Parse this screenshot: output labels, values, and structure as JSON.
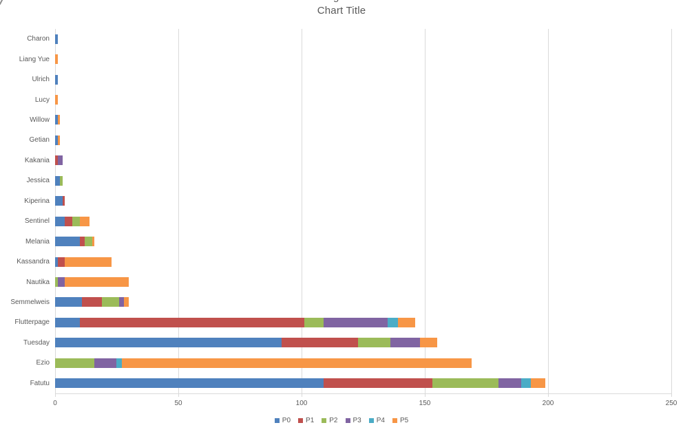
{
  "artifacts": {
    "top_center_partial": "g",
    "left_edge_partial": ")"
  },
  "chart_data": {
    "type": "bar",
    "orientation": "horizontal",
    "stacked": true,
    "title": "Chart Title",
    "categories": [
      "Charon",
      "Liang Yue",
      "Ulrich",
      "Lucy",
      "Willow",
      "Getian",
      "Kakania",
      "Jessica",
      "Kiperina",
      "Sentinel",
      "Melania",
      "Kassandra",
      "Nautika",
      "Semmelweis",
      "Flutterpage",
      "Tuesday",
      "Ezio",
      "Fatutu"
    ],
    "series": [
      {
        "name": "P0",
        "color": "#4F81BD",
        "values": [
          1,
          0,
          1,
          0,
          1,
          1,
          0,
          2,
          3,
          4,
          10,
          1,
          0,
          11,
          10,
          92,
          0,
          109
        ]
      },
      {
        "name": "P1",
        "color": "#C0504D",
        "values": [
          0,
          0,
          0,
          0,
          0,
          0,
          1,
          0,
          1,
          3,
          2,
          3,
          0,
          8,
          91,
          31,
          0,
          44
        ]
      },
      {
        "name": "P2",
        "color": "#9BBB59",
        "values": [
          0,
          0,
          0,
          0,
          0,
          0,
          0,
          1,
          0,
          3,
          3,
          0,
          1,
          7,
          8,
          13,
          16,
          27
        ]
      },
      {
        "name": "P3",
        "color": "#8064A2",
        "values": [
          0,
          0,
          0,
          0,
          0,
          0,
          2,
          0,
          0,
          0,
          0,
          0,
          3,
          2,
          26,
          12,
          9,
          9
        ]
      },
      {
        "name": "P4",
        "color": "#4BACC6",
        "values": [
          0,
          0,
          0,
          0,
          0,
          0,
          0,
          0,
          0,
          0,
          0,
          0,
          0,
          0,
          4,
          0,
          2,
          4
        ]
      },
      {
        "name": "P5",
        "color": "#F79646",
        "values": [
          0,
          1,
          0,
          1,
          1,
          1,
          0,
          0,
          0,
          4,
          1,
          19,
          26,
          2,
          7,
          7,
          142,
          6
        ]
      }
    ],
    "xlim": [
      0,
      250
    ],
    "xticks": [
      "0",
      "50",
      "100",
      "150",
      "200",
      "250"
    ],
    "legend": [
      "P0",
      "P1",
      "P2",
      "P3",
      "P4",
      "P5"
    ],
    "legend_position": "bottom",
    "grid": "vertical",
    "axis_text_color": "#595959",
    "gridline_color": "#D9D9D9"
  }
}
